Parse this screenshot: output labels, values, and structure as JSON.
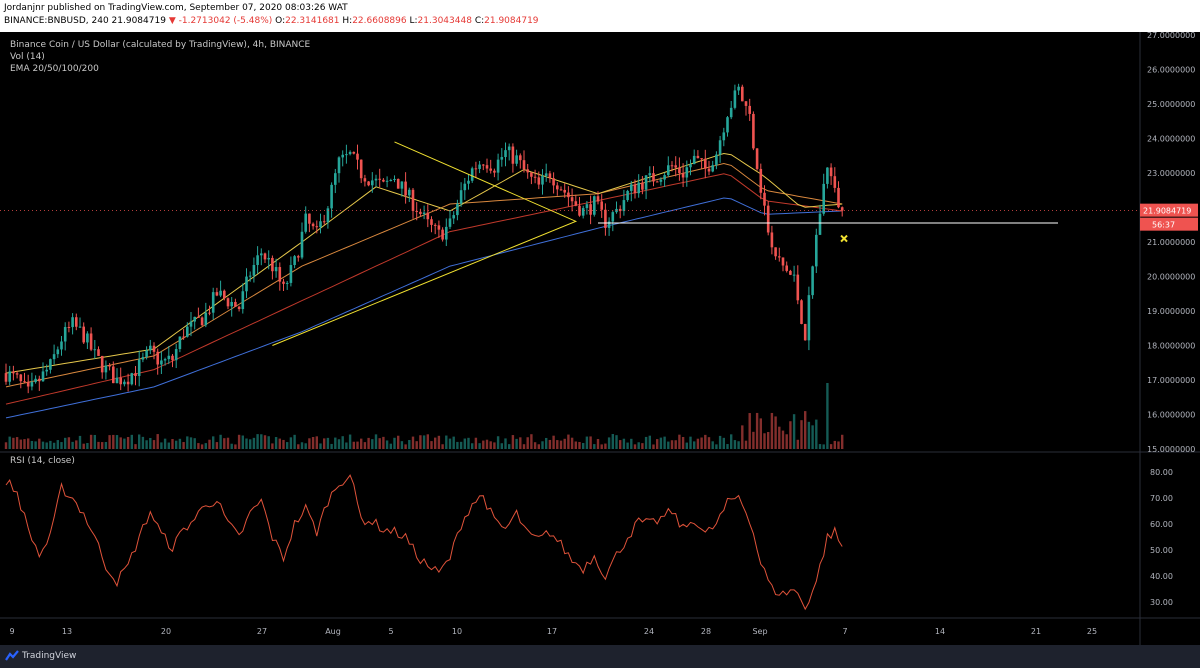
{
  "header": {
    "published": "Jordanjnr published on TradingView.com, September 07, 2020 08:03:26 WAT",
    "symbol": "BINANCE:BNBUSD, 240",
    "last": "21.9084719",
    "change": "-1.2713042 (-5.48%)",
    "o_label": "O:",
    "o": "22.3141681",
    "h_label": "H:",
    "h": "22.6608896",
    "l_label": "L:",
    "l": "21.3043448",
    "c_label": "C:",
    "c": "21.9084719"
  },
  "legend": {
    "title": "Binance Coin / US Dollar (calculated by TradingView), 4h, BINANCE",
    "vol": "Vol (14)",
    "ema": "EMA 20/50/100/200",
    "rsi": "RSI (14, close)"
  },
  "price_badge": "21.9084719",
  "countdown_badge": "56:37",
  "footer": {
    "brand": "TradingView"
  },
  "colors": {
    "up": "#26a69a",
    "down": "#ef5350",
    "ema20": "#e6c84b",
    "ema50": "#d9883e",
    "ema100": "#c0392b",
    "ema200": "#3f6fd8",
    "rsi": "#e0533a",
    "drawing": "#f0e030"
  },
  "chart_data": {
    "type": "candlestick",
    "title": "Binance Coin / US Dollar (calculated by TradingView), 4h, BINANCE",
    "y_ticks": [
      "27.0000000",
      "26.0000000",
      "25.0000000",
      "24.0000000",
      "23.0000000",
      "22.0000000",
      "21.0000000",
      "20.0000000",
      "19.0000000",
      "18.0000000",
      "17.0000000",
      "16.0000000",
      "15.0000000"
    ],
    "ylim": [
      15,
      27
    ],
    "x_ticks": [
      "9",
      "13",
      "20",
      "27",
      "Aug",
      "5",
      "10",
      "17",
      "24",
      "28",
      "Sep",
      "7",
      "14",
      "21",
      "25"
    ],
    "rsi_ticks": [
      "80.00",
      "70.00",
      "60.00",
      "50.00",
      "40.00",
      "30.00"
    ],
    "rsi_ylim": [
      25,
      82
    ],
    "current_price": 21.9084719,
    "horizontal_line": 21.55,
    "close_path": [
      [
        0,
        17.2
      ],
      [
        3,
        17.0
      ],
      [
        6,
        16.6
      ],
      [
        9,
        17.0
      ],
      [
        12,
        17.4
      ],
      [
        15,
        18.2
      ],
      [
        18,
        18.6
      ],
      [
        21,
        18.3
      ],
      [
        24,
        17.7
      ],
      [
        27,
        17.3
      ],
      [
        30,
        17.0
      ],
      [
        33,
        17.1
      ],
      [
        36,
        17.4
      ],
      [
        39,
        17.8
      ],
      [
        42,
        17.5
      ],
      [
        45,
        17.6
      ],
      [
        48,
        18.4
      ],
      [
        51,
        18.6
      ],
      [
        54,
        18.9
      ],
      [
        57,
        19.5
      ],
      [
        60,
        19.3
      ],
      [
        63,
        19.1
      ],
      [
        66,
        20.1
      ],
      [
        69,
        20.7
      ],
      [
        72,
        20.3
      ],
      [
        75,
        19.6
      ],
      [
        78,
        20.4
      ],
      [
        81,
        21.6
      ],
      [
        84,
        21.2
      ],
      [
        87,
        22.1
      ],
      [
        90,
        23.3
      ],
      [
        93,
        23.5
      ],
      [
        96,
        23.0
      ],
      [
        99,
        22.8
      ],
      [
        102,
        22.6
      ],
      [
        105,
        22.9
      ],
      [
        108,
        22.4
      ],
      [
        111,
        22.0
      ],
      [
        114,
        21.5
      ],
      [
        117,
        21.2
      ],
      [
        120,
        21.5
      ],
      [
        123,
        22.4
      ],
      [
        126,
        23.1
      ],
      [
        129,
        23.4
      ],
      [
        132,
        23.2
      ],
      [
        135,
        23.6
      ],
      [
        138,
        23.4
      ],
      [
        141,
        22.9
      ],
      [
        144,
        22.6
      ],
      [
        147,
        23.0
      ],
      [
        150,
        22.6
      ],
      [
        153,
        22.2
      ],
      [
        156,
        21.9
      ],
      [
        159,
        22.1
      ],
      [
        162,
        21.6
      ],
      [
        165,
        21.9
      ],
      [
        168,
        22.4
      ],
      [
        171,
        22.7
      ],
      [
        174,
        22.8
      ],
      [
        177,
        23.0
      ],
      [
        180,
        23.2
      ],
      [
        183,
        23.0
      ],
      [
        186,
        23.4
      ],
      [
        189,
        23.1
      ],
      [
        192,
        23.6
      ],
      [
        195,
        24.8
      ],
      [
        198,
        25.4
      ],
      [
        201,
        24.6
      ],
      [
        204,
        22.6
      ],
      [
        207,
        20.7
      ],
      [
        210,
        20.3
      ],
      [
        213,
        19.9
      ],
      [
        216,
        18.3
      ],
      [
        219,
        21.2
      ],
      [
        222,
        23.3
      ],
      [
        224,
        22.4
      ],
      [
        226,
        21.9084719
      ]
    ],
    "ema200_path": [
      [
        0,
        15.9
      ],
      [
        40,
        16.8
      ],
      [
        80,
        18.4
      ],
      [
        120,
        20.3
      ],
      [
        160,
        21.4
      ],
      [
        195,
        22.3
      ],
      [
        205,
        21.8
      ],
      [
        226,
        21.9
      ]
    ],
    "ema100_path": [
      [
        0,
        16.3
      ],
      [
        40,
        17.3
      ],
      [
        80,
        19.3
      ],
      [
        120,
        21.3
      ],
      [
        160,
        22.2
      ],
      [
        195,
        23.0
      ],
      [
        205,
        22.2
      ],
      [
        226,
        21.9
      ]
    ],
    "ema50_path": [
      [
        0,
        16.8
      ],
      [
        40,
        17.7
      ],
      [
        80,
        20.3
      ],
      [
        120,
        22.1
      ],
      [
        160,
        22.4
      ],
      [
        195,
        23.3
      ],
      [
        205,
        22.5
      ],
      [
        226,
        22.1
      ]
    ],
    "ema20_path": [
      [
        0,
        17.2
      ],
      [
        40,
        17.9
      ],
      [
        80,
        21.0
      ],
      [
        100,
        22.6
      ],
      [
        120,
        21.9
      ],
      [
        140,
        23.1
      ],
      [
        160,
        22.4
      ],
      [
        195,
        23.6
      ],
      [
        205,
        22.9
      ],
      [
        215,
        22.0
      ],
      [
        226,
        22.1
      ]
    ],
    "triangle": [
      [
        105,
        23.9
      ],
      [
        154,
        21.6
      ],
      [
        72,
        18.0
      ]
    ],
    "marker_x": {
      "x": 226.5,
      "y": 21.1
    },
    "rsi_path": [
      [
        0,
        77
      ],
      [
        3,
        72
      ],
      [
        6,
        58
      ],
      [
        9,
        48
      ],
      [
        12,
        55
      ],
      [
        15,
        74
      ],
      [
        18,
        70
      ],
      [
        21,
        64
      ],
      [
        24,
        55
      ],
      [
        27,
        44
      ],
      [
        30,
        38
      ],
      [
        33,
        44
      ],
      [
        36,
        55
      ],
      [
        39,
        65
      ],
      [
        42,
        56
      ],
      [
        45,
        51
      ],
      [
        48,
        58
      ],
      [
        51,
        62
      ],
      [
        54,
        68
      ],
      [
        57,
        69
      ],
      [
        60,
        60
      ],
      [
        63,
        55
      ],
      [
        66,
        64
      ],
      [
        69,
        69
      ],
      [
        72,
        55
      ],
      [
        75,
        47
      ],
      [
        78,
        60
      ],
      [
        81,
        66
      ],
      [
        84,
        57
      ],
      [
        87,
        69
      ],
      [
        90,
        76
      ],
      [
        93,
        79
      ],
      [
        96,
        62
      ],
      [
        99,
        61
      ],
      [
        102,
        58
      ],
      [
        105,
        57
      ],
      [
        108,
        55
      ],
      [
        111,
        48
      ],
      [
        114,
        44
      ],
      [
        117,
        41
      ],
      [
        120,
        47
      ],
      [
        123,
        60
      ],
      [
        126,
        68
      ],
      [
        129,
        71
      ],
      [
        132,
        61
      ],
      [
        135,
        58
      ],
      [
        138,
        64
      ],
      [
        141,
        56
      ],
      [
        144,
        54
      ],
      [
        147,
        57
      ],
      [
        150,
        52
      ],
      [
        153,
        46
      ],
      [
        156,
        43
      ],
      [
        159,
        48
      ],
      [
        162,
        40
      ],
      [
        165,
        48
      ],
      [
        168,
        55
      ],
      [
        171,
        61
      ],
      [
        174,
        60
      ],
      [
        177,
        62
      ],
      [
        180,
        65
      ],
      [
        183,
        58
      ],
      [
        186,
        62
      ],
      [
        189,
        56
      ],
      [
        192,
        60
      ],
      [
        195,
        68
      ],
      [
        198,
        71
      ],
      [
        201,
        62
      ],
      [
        204,
        45
      ],
      [
        207,
        35
      ],
      [
        210,
        33
      ],
      [
        213,
        35
      ],
      [
        216,
        28
      ],
      [
        219,
        38
      ],
      [
        222,
        55
      ],
      [
        224,
        57
      ],
      [
        226,
        51
      ]
    ]
  }
}
